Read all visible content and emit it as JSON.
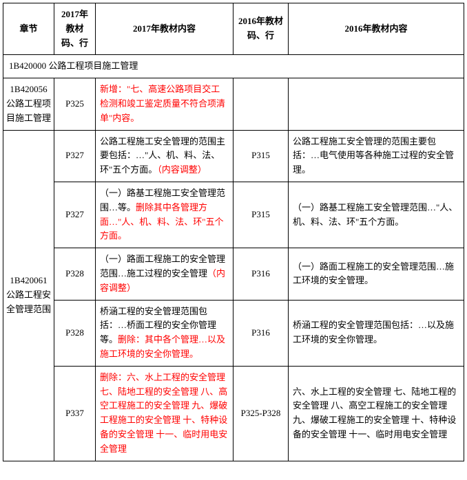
{
  "headers": {
    "section": "章节",
    "code2017": "2017年教材码、行",
    "content2017": "2017年教材内容",
    "code2016": "2016年教材码、行",
    "content2016": "2016年教材内容"
  },
  "sectionHeader": "1B420000 公路工程项目施工管理",
  "group1": {
    "section": "1B420056公路工程项目施工管理",
    "row1": {
      "code2017": "P325",
      "content2017": "新增：\"七、高速公路项目交工检测和竣工鉴定质量不符合项清单\"内容。",
      "code2016": "",
      "content2016": ""
    }
  },
  "group2": {
    "section": "1B420061公路工程安全管理范围",
    "row1": {
      "code2017": "P327",
      "content2017_plain1": "公路工程施工安全管理的范围主要包括：…\"人、机、料、法、环\"五个方面。",
      "content2017_red": "（内容调整）",
      "code2016": "P315",
      "content2016": "公路工程施工安全管理的范围主要包括：…电气使用等各种施工过程的安全管理。"
    },
    "row2": {
      "code2017": "P327",
      "content2017_plain1": "（一）路基工程施工安全管理范围…等。",
      "content2017_red": "删除其中各管理方面…\"人、机、料、法、环\"五个方面。",
      "code2016": "P315",
      "content2016": "（一）路基工程施工安全管理范围…\"人、机、料、法、环\"五个方面。"
    },
    "row3": {
      "code2017": "P328",
      "content2017_plain1": "（一）路面工程施工的安全管理范围…施工过程的安全管理",
      "content2017_red": "（内容调整）",
      "code2016": "P316",
      "content2016": "（一）路面工程施工的安全管理范围…施工环境的安全管理。"
    },
    "row4": {
      "code2017": "P328",
      "content2017_plain1": "桥涵工程的安全管理范围包括：…桥面工程的安全你管理等。",
      "content2017_red": "删除：其中各个管理…以及施工环境的安全你管理。",
      "code2016": "P316",
      "content2016": "桥涵工程的安全管理范围包括：…以及施工环境的安全你管理。"
    },
    "row5": {
      "code2017": "P337",
      "content2017_red": "删除：六、水上工程的安全管理 七、陆地工程的安全管理 八、高空工程施工的安全管理 九、爆破工程施工的安全管理 十、特种设备的安全管理 十一、临时用电安全管理",
      "code2016": "P325-P328",
      "content2016": "六、水上工程的安全管理 七、陆地工程的安全管理 八、高空工程施工的安全管理 九、爆破工程施工的安全管理 十、特种设备的安全管理 十一、临时用电安全管理"
    }
  }
}
